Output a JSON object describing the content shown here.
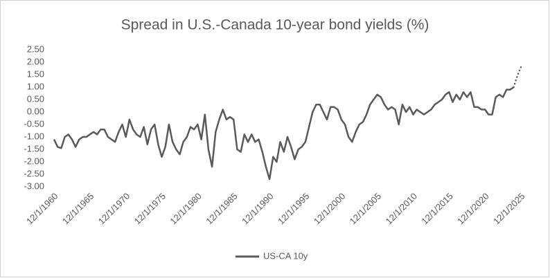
{
  "chart_data": {
    "type": "line",
    "title": "Spread in U.S.-Canada 10-year bond yields (%)",
    "x": [
      "12/1/1960",
      "6/1/1961",
      "12/1/1961",
      "6/1/1962",
      "12/1/1962",
      "6/1/1963",
      "12/1/1963",
      "6/1/1964",
      "12/1/1964",
      "6/1/1965",
      "12/1/1965",
      "6/1/1966",
      "12/1/1966",
      "6/1/1967",
      "12/1/1967",
      "6/1/1968",
      "12/1/1968",
      "6/1/1969",
      "12/1/1969",
      "6/1/1970",
      "12/1/1970",
      "6/1/1971",
      "12/1/1971",
      "6/1/1972",
      "12/1/1972",
      "6/1/1973",
      "12/1/1973",
      "6/1/1974",
      "12/1/1974",
      "6/1/1975",
      "12/1/1975",
      "6/1/1976",
      "12/1/1976",
      "6/1/1977",
      "12/1/1977",
      "6/1/1978",
      "12/1/1978",
      "6/1/1979",
      "12/1/1979",
      "6/1/1980",
      "12/1/1980",
      "6/1/1981",
      "12/1/1981",
      "6/1/1982",
      "12/1/1982",
      "6/1/1983",
      "12/1/1983",
      "6/1/1984",
      "12/1/1984",
      "6/1/1985",
      "12/1/1985",
      "6/1/1986",
      "12/1/1986",
      "6/1/1987",
      "12/1/1987",
      "6/1/1988",
      "12/1/1988",
      "6/1/1989",
      "12/1/1989",
      "6/1/1990",
      "12/1/1990",
      "6/1/1991",
      "12/1/1991",
      "6/1/1992",
      "12/1/1992",
      "6/1/1993",
      "12/1/1993",
      "6/1/1994",
      "12/1/1994",
      "6/1/1995",
      "12/1/1995",
      "6/1/1996",
      "12/1/1996",
      "6/1/1997",
      "12/1/1997",
      "6/1/1998",
      "12/1/1998",
      "6/1/1999",
      "12/1/1999",
      "6/1/2000",
      "12/1/2000",
      "6/1/2001",
      "12/1/2001",
      "6/1/2002",
      "12/1/2002",
      "6/1/2003",
      "12/1/2003",
      "6/1/2004",
      "12/1/2004",
      "6/1/2005",
      "12/1/2005",
      "6/1/2006",
      "12/1/2006",
      "6/1/2007",
      "12/1/2007",
      "6/1/2008",
      "12/1/2008",
      "6/1/2009",
      "12/1/2009",
      "6/1/2010",
      "12/1/2010",
      "6/1/2011",
      "12/1/2011",
      "6/1/2012",
      "12/1/2012",
      "6/1/2013",
      "12/1/2013",
      "6/1/2014",
      "12/1/2014",
      "6/1/2015",
      "12/1/2015",
      "6/1/2016",
      "12/1/2016",
      "6/1/2017",
      "12/1/2017",
      "6/1/2018",
      "12/1/2018",
      "6/1/2019",
      "12/1/2019",
      "6/1/2020",
      "12/1/2020",
      "6/1/2021",
      "12/1/2021",
      "6/1/2022",
      "12/1/2022",
      "6/1/2023",
      "12/1/2023",
      "6/1/2024",
      "12/1/2024"
    ],
    "series": [
      {
        "name": "US-CA 10y",
        "color": "#595959",
        "values": [
          -1.1,
          -1.4,
          -1.45,
          -1.0,
          -0.9,
          -1.1,
          -1.4,
          -1.1,
          -1.0,
          -1.0,
          -0.9,
          -0.8,
          -0.9,
          -0.7,
          -0.7,
          -1.0,
          -1.1,
          -1.2,
          -0.8,
          -0.5,
          -1.0,
          -0.3,
          -0.7,
          -0.9,
          -1.0,
          -0.6,
          -1.3,
          -0.7,
          -0.5,
          -1.3,
          -1.8,
          -1.4,
          -0.5,
          -1.2,
          -1.5,
          -1.7,
          -1.2,
          -1.0,
          -0.6,
          -0.7,
          -0.5,
          -1.1,
          -0.1,
          -1.5,
          -2.2,
          -0.8,
          -0.3,
          0.1,
          -0.3,
          -0.2,
          -0.3,
          -1.5,
          -1.6,
          -0.9,
          -1.2,
          -0.9,
          -1.2,
          -1.1,
          -1.6,
          -2.2,
          -2.7,
          -1.8,
          -2.0,
          -1.2,
          -1.6,
          -1.0,
          -1.4,
          -1.9,
          -1.5,
          -1.4,
          -1.2,
          -0.6,
          0.0,
          0.3,
          0.3,
          0.0,
          -0.3,
          0.2,
          0.2,
          0.1,
          -0.3,
          -0.5,
          -1.0,
          -1.2,
          -0.8,
          -0.5,
          -0.4,
          -0.1,
          0.3,
          0.5,
          0.7,
          0.6,
          0.3,
          0.1,
          0.2,
          0.1,
          -0.5,
          0.3,
          0.0,
          0.2,
          -0.1,
          0.1,
          0.0,
          -0.1,
          0.0,
          0.1,
          0.3,
          0.4,
          0.5,
          0.7,
          0.8,
          0.4,
          0.7,
          0.5,
          0.8,
          0.6,
          0.8,
          0.2,
          0.2,
          0.1,
          0.1,
          -0.1,
          -0.1,
          0.6,
          0.7,
          0.6,
          0.9,
          0.9,
          1.0
        ]
      }
    ],
    "projection": {
      "color": "#595959",
      "style": "dotted",
      "x": [
        "12/1/2024",
        "6/1/2025",
        "12/1/2025"
      ],
      "values": [
        1.0,
        1.45,
        1.8
      ]
    },
    "xlim": [
      "12/1/1960",
      "12/1/2025"
    ],
    "xticks": [
      "12/1/1960",
      "12/1/1965",
      "12/1/1970",
      "12/1/1975",
      "12/1/1980",
      "12/1/1985",
      "12/1/1990",
      "12/1/1995",
      "12/1/2000",
      "12/1/2005",
      "12/1/2010",
      "12/1/2015",
      "12/1/2020",
      "12/1/2025"
    ],
    "ylim": [
      -3,
      2.5
    ],
    "yticks": [
      {
        "value": -3,
        "label": "-3.00"
      },
      {
        "value": -2.5,
        "label": "-2.50"
      },
      {
        "value": -2,
        "label": "-2.00"
      },
      {
        "value": -1.5,
        "label": "-1.50"
      },
      {
        "value": -1,
        "label": "-1.00"
      },
      {
        "value": -0.5,
        "label": "-0.50"
      },
      {
        "value": 0,
        "label": "0.00"
      },
      {
        "value": 0.5,
        "label": "0.50"
      },
      {
        "value": 1,
        "label": "1.00"
      },
      {
        "value": 1.5,
        "label": "1.50"
      },
      {
        "value": 2,
        "label": "2.00"
      },
      {
        "value": 2.5,
        "label": "2.50"
      }
    ],
    "grid": false,
    "legend": "bottom"
  }
}
